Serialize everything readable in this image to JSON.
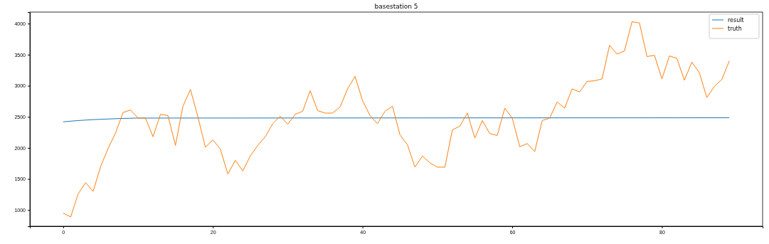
{
  "chart_data": {
    "type": "line",
    "title": "basestation 5",
    "xlim": [
      -4.45,
      93.45
    ],
    "ylim": [
      740,
      4185
    ],
    "xticks": [
      0,
      20,
      40,
      60,
      80
    ],
    "yticks": [
      1000,
      1500,
      2000,
      2500,
      3000,
      3500,
      4000
    ],
    "legend": "top right",
    "grid": false,
    "series": [
      {
        "name": "result",
        "color": "#1f77b4",
        "x": [
          0,
          2,
          4,
          6,
          8,
          10,
          89
        ],
        "values": [
          2420,
          2440,
          2455,
          2465,
          2475,
          2480,
          2485
        ]
      },
      {
        "name": "truth",
        "color": "#ff7f0e",
        "x": [
          0,
          1,
          2,
          3,
          4,
          5,
          6,
          7,
          8,
          9,
          10,
          11,
          12,
          13,
          14,
          15,
          16,
          17,
          18,
          19,
          20,
          21,
          22,
          23,
          24,
          25,
          26,
          27,
          28,
          29,
          30,
          31,
          32,
          33,
          34,
          35,
          36,
          37,
          38,
          39,
          40,
          41,
          42,
          43,
          44,
          45,
          46,
          47,
          48,
          49,
          50,
          51,
          52,
          53,
          54,
          55,
          56,
          57,
          58,
          59,
          60,
          61,
          62,
          63,
          64,
          65,
          66,
          67,
          68,
          69,
          70,
          71,
          72,
          73,
          74,
          75,
          76,
          77,
          78,
          79,
          80,
          81,
          82,
          83,
          84,
          85,
          86,
          87,
          88,
          89
        ],
        "values": [
          950,
          890,
          1260,
          1440,
          1300,
          1700,
          1990,
          2240,
          2570,
          2610,
          2480,
          2480,
          2180,
          2540,
          2520,
          2040,
          2670,
          2940,
          2500,
          2010,
          2130,
          1980,
          1580,
          1800,
          1630,
          1870,
          2040,
          2180,
          2390,
          2510,
          2380,
          2540,
          2590,
          2920,
          2600,
          2560,
          2560,
          2660,
          2950,
          3150,
          2760,
          2520,
          2390,
          2590,
          2670,
          2210,
          2050,
          1690,
          1870,
          1760,
          1690,
          1690,
          2290,
          2350,
          2560,
          2160,
          2440,
          2230,
          2200,
          2640,
          2480,
          2020,
          2070,
          1940,
          2440,
          2480,
          2740,
          2640,
          2950,
          2900,
          3070,
          3080,
          3110,
          3650,
          3510,
          3560,
          4030,
          4010,
          3470,
          3490,
          3110,
          3480,
          3440,
          3090,
          3380,
          3210,
          2810,
          2990,
          3100,
          3400
        ]
      }
    ]
  }
}
